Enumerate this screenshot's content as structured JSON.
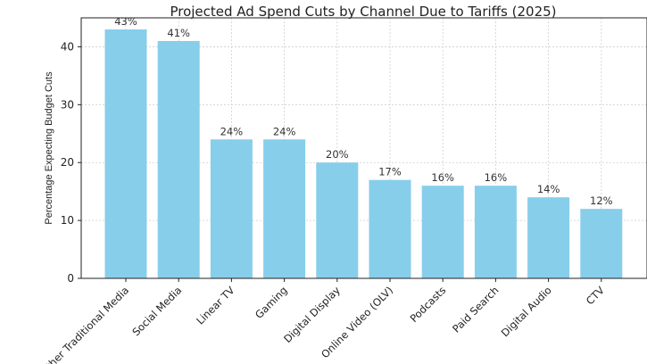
{
  "chart_data": {
    "type": "bar",
    "title": "Projected Ad Spend Cuts by Channel Due to Tariffs (2025)",
    "xlabel": "",
    "ylabel": "Percentage Expecting Budget Cuts",
    "categories": [
      "Other Traditional Media",
      "Social Media",
      "Linear TV",
      "Gaming",
      "Digital Display",
      "Online Video (OLV)",
      "Podcasts",
      "Paid Search",
      "Digital Audio",
      "CTV"
    ],
    "values": [
      43,
      41,
      24,
      24,
      20,
      17,
      16,
      16,
      14,
      12
    ],
    "data_labels": [
      "43%",
      "41%",
      "24%",
      "24%",
      "20%",
      "17%",
      "16%",
      "16%",
      "14%",
      "12%"
    ],
    "ylim": [
      0,
      45
    ],
    "yticks": [
      0,
      10,
      20,
      30,
      40
    ],
    "grid": true,
    "bar_color": "#87CEEB"
  }
}
